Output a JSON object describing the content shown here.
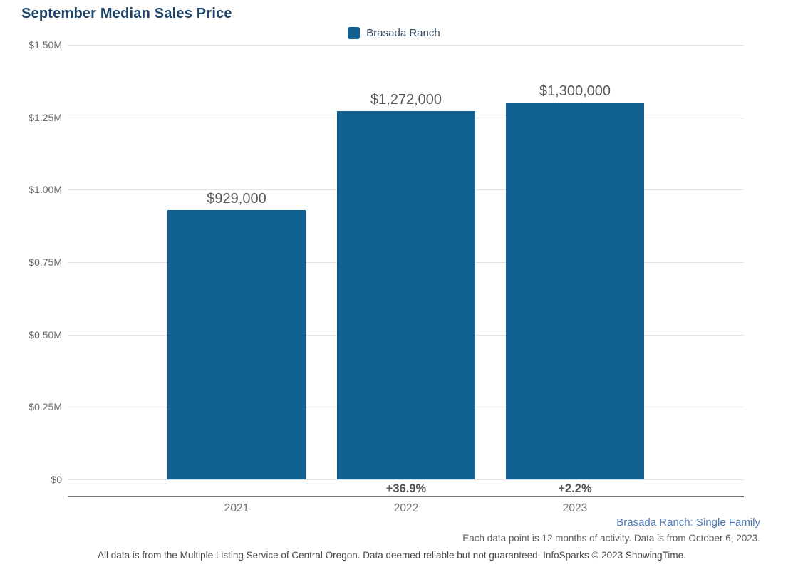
{
  "header": {
    "title": "September Median Sales Price"
  },
  "legend": {
    "label": "Brasada Ranch",
    "swatch_color": "#116192"
  },
  "chart_data": {
    "type": "bar",
    "title": "September Median Sales Price",
    "categories": [
      "2021",
      "2022",
      "2023"
    ],
    "series": [
      {
        "name": "Brasada Ranch",
        "color": "#116192",
        "values": [
          929000,
          1272000,
          1300000
        ]
      }
    ],
    "value_labels": [
      "$929,000",
      "$1,272,000",
      "$1,300,000"
    ],
    "pct_change_labels": [
      "",
      "+36.9%",
      "+2.2%"
    ],
    "xlabel": "",
    "ylabel": "",
    "ylim": [
      0,
      1500000
    ],
    "y_ticks": [
      {
        "value": 1500000,
        "label": "$1.50M"
      },
      {
        "value": 1250000,
        "label": "$1.25M"
      },
      {
        "value": 1000000,
        "label": "$1.00M"
      },
      {
        "value": 750000,
        "label": "$0.75M"
      },
      {
        "value": 500000,
        "label": "$0.50M"
      },
      {
        "value": 250000,
        "label": "$0.25M"
      },
      {
        "value": 0,
        "label": "$0"
      }
    ],
    "grid": "horizontal",
    "legend_position": "top-center",
    "bar_label_color": "#565656",
    "pct_label_color": "#555555"
  },
  "footer": {
    "series_note": "Brasada Ranch: Single Family",
    "data_note": "Each data point is 12 months of activity. Data is from October 6, 2023.",
    "disclaimer": "All data is from the Multiple Listing Service of Central Oregon. Data deemed reliable but not guaranteed. InfoSparks © 2023 ShowingTime."
  },
  "colors": {
    "title": "#1d4466",
    "bar": "#116192",
    "gridline": "#e0e0e0",
    "axis_line": "#757575",
    "footer_link_blue": "#4d7ab5"
  }
}
